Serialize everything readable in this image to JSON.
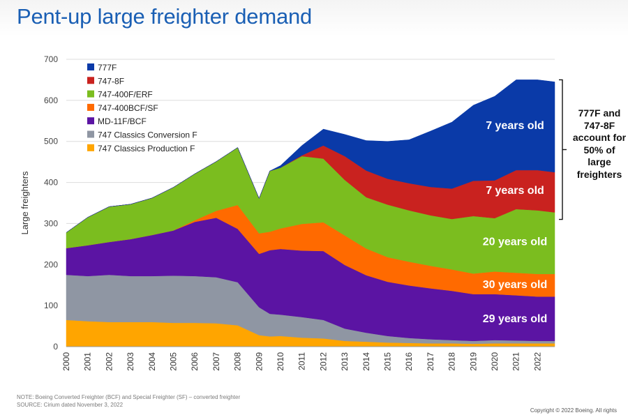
{
  "header": {
    "title": "Pent-up large freighter demand"
  },
  "footer": {
    "note": "NOTE: Boeing Converted Freighter (BCF) and Special Freighter (SF) – converted freighter",
    "source": "SOURCE: Cirium dated November 3, 2022",
    "copyright": "Copyright © 2022 Boeing. All rights"
  },
  "bracket_label": "777F and 747-8F account for 50% of large freighters",
  "colors": {
    "777F": "#0a3aa8",
    "747-8F": "#c9221f",
    "747-400F/ERF": "#7bbd1f",
    "747-400BCF/SF": "#ff6a00",
    "MD-11F/BCF": "#5b14a3",
    "747 Classics Conversion F": "#8f96a3",
    "747 Classics Production F": "#ffa500"
  },
  "chart_data": {
    "type": "area",
    "stacked": true,
    "title": "Pent-up large freighter demand",
    "xlabel": "",
    "ylabel": "Large freighters",
    "ylim": [
      0,
      700
    ],
    "yticks": [
      0,
      100,
      200,
      300,
      400,
      500,
      600,
      700
    ],
    "xlim": [
      2000,
      2022.8
    ],
    "xticks": [
      "2000",
      "2001",
      "2002",
      "2003",
      "2004",
      "2005",
      "2006",
      "2007",
      "2008",
      "2009",
      "2010",
      "2011",
      "2012",
      "2013",
      "2014",
      "2015",
      "2016",
      "2017",
      "2018",
      "2019",
      "2020",
      "2021",
      "2022"
    ],
    "grid": true,
    "legend_position": "top-left",
    "x": [
      2000,
      2001,
      2002,
      2003,
      2004,
      2005,
      2006,
      2007,
      2008,
      2009,
      2009.5,
      2010,
      2011,
      2012,
      2013,
      2014,
      2015,
      2016,
      2017,
      2018,
      2019,
      2020,
      2021,
      2022,
      2022.8
    ],
    "series": [
      {
        "name": "747 Classics Production F",
        "values": [
          65,
          62,
          60,
          60,
          60,
          58,
          58,
          57,
          52,
          28,
          25,
          26,
          22,
          20,
          14,
          12,
          10,
          9,
          8,
          8,
          7,
          8,
          8,
          8,
          8
        ]
      },
      {
        "name": "747 Classics Conversion F",
        "values": [
          110,
          110,
          115,
          112,
          112,
          115,
          114,
          112,
          105,
          68,
          55,
          52,
          50,
          45,
          30,
          22,
          16,
          12,
          10,
          8,
          7,
          8,
          7,
          6,
          6
        ]
      },
      {
        "name": "MD-11F/BCF",
        "values": [
          65,
          75,
          80,
          90,
          100,
          110,
          132,
          145,
          130,
          130,
          155,
          160,
          162,
          168,
          155,
          140,
          132,
          128,
          124,
          120,
          114,
          112,
          110,
          108,
          108
        ]
      },
      {
        "name": "747-400BCF/SF",
        "values": [
          0,
          0,
          0,
          0,
          0,
          0,
          4,
          17,
          58,
          50,
          45,
          50,
          65,
          70,
          72,
          65,
          60,
          58,
          55,
          52,
          50,
          55,
          55,
          55,
          55
        ]
      },
      {
        "name": "747-400F/ERF",
        "values": [
          38,
          68,
          86,
          85,
          90,
          105,
          113,
          120,
          140,
          85,
          148,
          148,
          165,
          155,
          135,
          125,
          128,
          125,
          123,
          123,
          140,
          130,
          155,
          155,
          150
        ]
      },
      {
        "name": "747-8F",
        "values": [
          0,
          0,
          0,
          0,
          0,
          0,
          0,
          0,
          0,
          0,
          0,
          0,
          2,
          32,
          58,
          65,
          63,
          66,
          69,
          74,
          86,
          92,
          95,
          98,
          98
        ]
      },
      {
        "name": "777F",
        "values": [
          0,
          0,
          0,
          0,
          0,
          0,
          0,
          0,
          0,
          0,
          0,
          5,
          24,
          40,
          53,
          73,
          91,
          106,
          136,
          162,
          184,
          205,
          220,
          220,
          220
        ]
      }
    ],
    "annotations": [
      {
        "text": "7 years old",
        "series": "777F"
      },
      {
        "text": "7 years old",
        "series": "747-8F"
      },
      {
        "text": "20 years old",
        "series": "747-400F/ERF"
      },
      {
        "text": "30 years old",
        "series": "747-400BCF/SF"
      },
      {
        "text": "29 years old",
        "series": "MD-11F/BCF"
      }
    ]
  }
}
